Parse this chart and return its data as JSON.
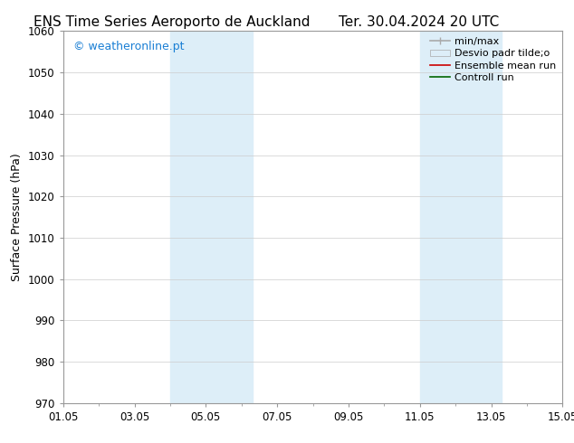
{
  "title_left": "ENS Time Series Aeroporto de Auckland",
  "title_right": "Ter. 30.04.2024 20 UTC",
  "ylabel": "Surface Pressure (hPa)",
  "ylim": [
    970,
    1060
  ],
  "yticks": [
    970,
    980,
    990,
    1000,
    1010,
    1020,
    1030,
    1040,
    1050,
    1060
  ],
  "xlim_start": 0,
  "xlim_end": 14,
  "xtick_labels": [
    "01.05",
    "03.05",
    "05.05",
    "07.05",
    "09.05",
    "11.05",
    "13.05",
    "15.05"
  ],
  "xtick_positions": [
    0,
    2,
    4,
    6,
    8,
    10,
    12,
    14
  ],
  "shaded_bands": [
    {
      "x_start": 3.0,
      "x_end": 5.3,
      "color": "#ddeef8"
    },
    {
      "x_start": 10.0,
      "x_end": 12.3,
      "color": "#ddeef8"
    }
  ],
  "watermark": "© weatheronline.pt",
  "watermark_color": "#1a7fd4",
  "background_color": "#ffffff",
  "plot_bg_color": "#ffffff",
  "grid_color": "#cccccc",
  "title_fontsize": 11,
  "label_fontsize": 9,
  "tick_fontsize": 8.5,
  "legend_fontsize": 8
}
